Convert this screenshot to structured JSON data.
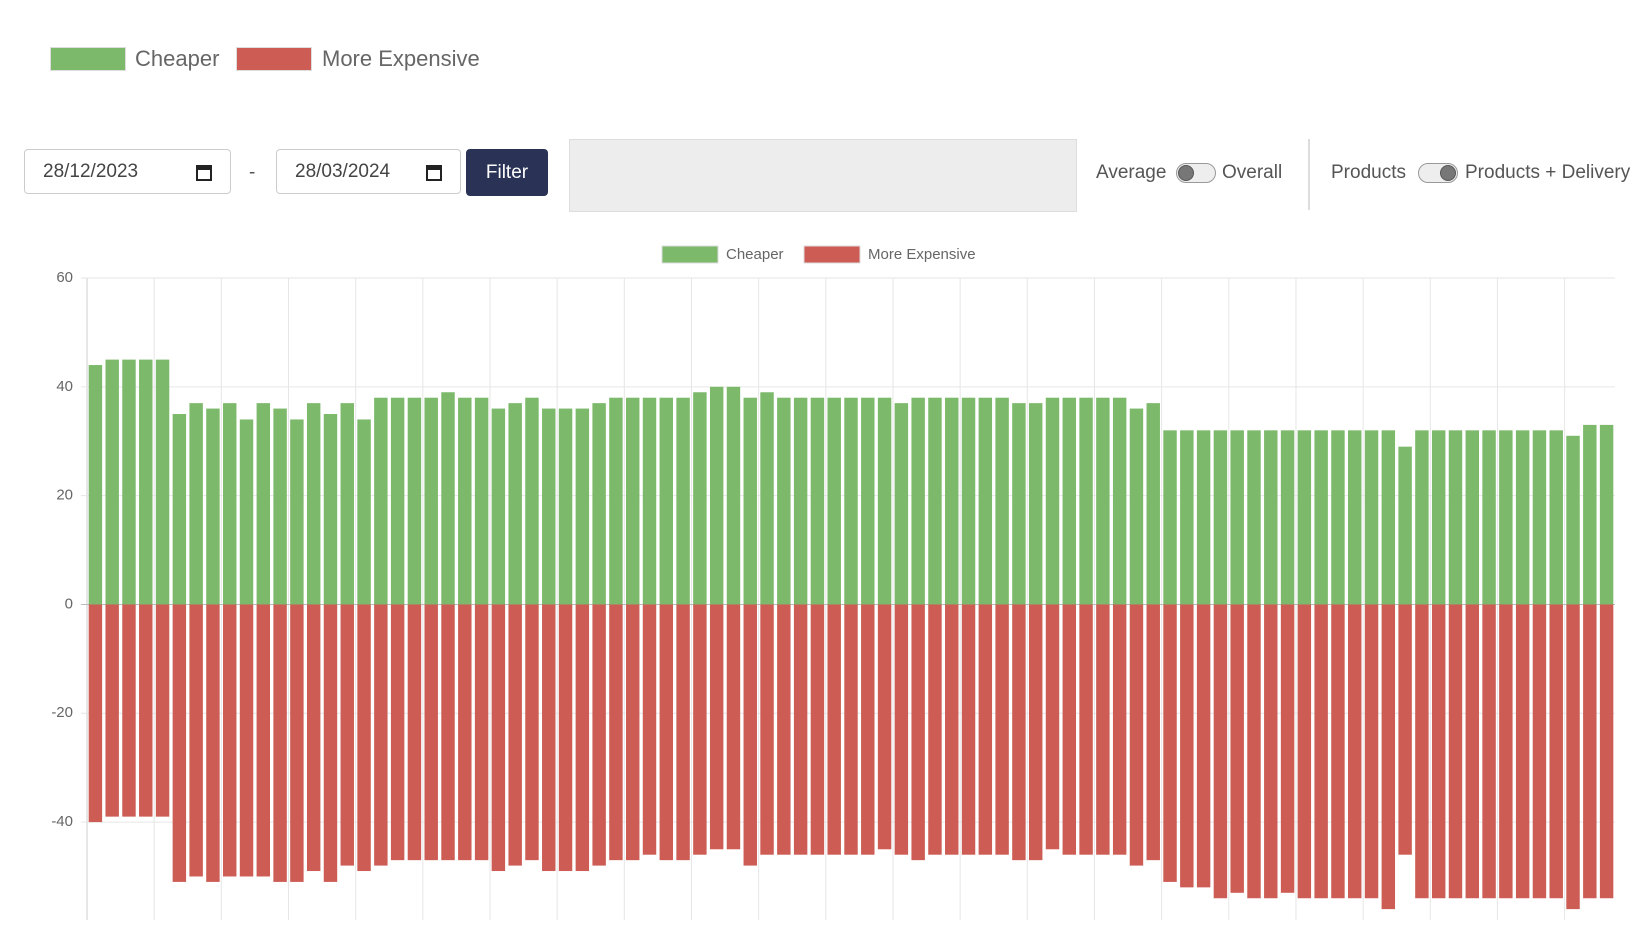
{
  "ui": {
    "start_date": "28/12/2023",
    "separator": "-",
    "end_date": "28/03/2024",
    "filter_button": "Filter",
    "toggle1_left": "Average",
    "toggle1_right": "Overall",
    "toggle2_left": "Products",
    "toggle2_right": "Products + Delivery"
  },
  "chart_data": {
    "type": "stacked-bar",
    "categories": [
      null,
      null,
      null,
      null,
      null,
      null,
      null,
      null,
      null,
      null,
      null,
      null,
      null,
      null,
      null,
      null,
      null,
      null,
      null,
      null,
      null,
      null,
      null,
      null,
      null,
      null,
      null,
      null,
      null,
      null,
      null,
      null,
      null,
      null,
      null,
      null,
      null,
      null,
      null,
      null,
      null,
      null,
      null,
      null,
      null,
      null,
      null,
      null,
      null,
      null,
      null,
      null,
      null,
      null,
      null,
      null,
      null,
      null,
      null,
      null,
      null,
      null,
      null,
      null,
      null,
      null,
      null,
      null,
      null,
      null,
      null,
      null,
      null,
      null,
      null,
      null,
      null,
      null,
      null,
      null,
      null,
      null,
      null,
      null,
      null,
      null,
      null,
      null,
      null,
      null,
      null
    ],
    "series": [
      {
        "name": "Cheaper",
        "color": "#7cb96a",
        "values": [
          44,
          45,
          45,
          45,
          45,
          35,
          37,
          36,
          37,
          34,
          37,
          36,
          34,
          37,
          35,
          37,
          34,
          38,
          38,
          38,
          38,
          39,
          38,
          38,
          36,
          37,
          38,
          36,
          36,
          36,
          37,
          38,
          38,
          38,
          38,
          38,
          39,
          40,
          40,
          38,
          39,
          38,
          38,
          38,
          38,
          38,
          38,
          38,
          37,
          38,
          38,
          38,
          38,
          38,
          38,
          37,
          37,
          38,
          38,
          38,
          38,
          38,
          36,
          37,
          32,
          32,
          32,
          32,
          32,
          32,
          32,
          32,
          32,
          32,
          32,
          32,
          32,
          32,
          29,
          32,
          32,
          32,
          32,
          32,
          32,
          32,
          32,
          32,
          31,
          33,
          33
        ]
      },
      {
        "name": "More Expensive",
        "color": "#cd5c54",
        "values": [
          -40,
          -39,
          -39,
          -39,
          -39,
          -51,
          -50,
          -51,
          -50,
          -50,
          -50,
          -51,
          -51,
          -49,
          -51,
          -48,
          -49,
          -48,
          -47,
          -47,
          -47,
          -47,
          -47,
          -47,
          -49,
          -48,
          -47,
          -49,
          -49,
          -49,
          -48,
          -47,
          -47,
          -46,
          -47,
          -47,
          -46,
          -45,
          -45,
          -48,
          -46,
          -46,
          -46,
          -46,
          -46,
          -46,
          -46,
          -45,
          -46,
          -47,
          -46,
          -46,
          -46,
          -46,
          -46,
          -47,
          -47,
          -45,
          -46,
          -46,
          -46,
          -46,
          -48,
          -47,
          -51,
          -52,
          -52,
          -54,
          -53,
          -54,
          -54,
          -53,
          -54,
          -54,
          -54,
          -54,
          -54,
          -56,
          -46,
          -54,
          -54,
          -54,
          -54,
          -54,
          -54,
          -54,
          -54,
          -54,
          -56,
          -54,
          -54
        ]
      }
    ],
    "ylim": [
      -58,
      60
    ],
    "yticks": [
      60,
      40,
      20,
      0,
      -20,
      -40
    ],
    "grid": true
  }
}
